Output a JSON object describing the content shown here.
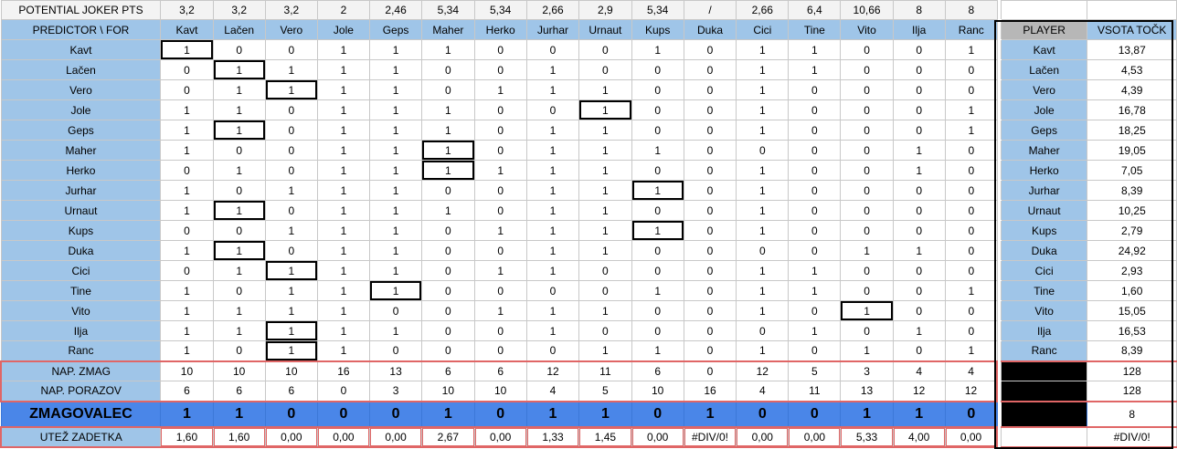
{
  "joker_label": "POTENTIAL JOKER PTS",
  "joker_values": [
    "3,2",
    "3,2",
    "3,2",
    "2",
    "2,46",
    "5,34",
    "5,34",
    "2,66",
    "2,9",
    "5,34",
    "/",
    "2,66",
    "6,4",
    "10,66",
    "8",
    "8"
  ],
  "corner_label": "PREDICTOR \\ FOR",
  "columns": [
    "Kavt",
    "Lačen",
    "Vero",
    "Jole",
    "Geps",
    "Maher",
    "Herko",
    "Jurhar",
    "Urnaut",
    "Kups",
    "Duka",
    "Cici",
    "Tine",
    "Vito",
    "Ilja",
    "Ranc"
  ],
  "rows": [
    {
      "name": "Kavt",
      "values": [
        "1",
        "0",
        "0",
        "1",
        "1",
        "1",
        "0",
        "0",
        "0",
        "1",
        "0",
        "1",
        "1",
        "0",
        "0",
        "1"
      ],
      "self": 0
    },
    {
      "name": "Lačen",
      "values": [
        "0",
        "1",
        "1",
        "1",
        "1",
        "0",
        "0",
        "1",
        "0",
        "0",
        "0",
        "1",
        "1",
        "0",
        "0",
        "0"
      ],
      "self": 1
    },
    {
      "name": "Vero",
      "values": [
        "0",
        "1",
        "1",
        "1",
        "1",
        "0",
        "1",
        "1",
        "1",
        "0",
        "0",
        "1",
        "0",
        "0",
        "0",
        "0"
      ],
      "self": 2
    },
    {
      "name": "Jole",
      "values": [
        "1",
        "1",
        "0",
        "1",
        "1",
        "1",
        "0",
        "0",
        "1",
        "0",
        "0",
        "1",
        "0",
        "0",
        "0",
        "1"
      ],
      "self": 8
    },
    {
      "name": "Geps",
      "values": [
        "1",
        "1",
        "0",
        "1",
        "1",
        "1",
        "0",
        "1",
        "1",
        "0",
        "0",
        "1",
        "0",
        "0",
        "0",
        "1"
      ],
      "self": 1
    },
    {
      "name": "Maher",
      "values": [
        "1",
        "0",
        "0",
        "1",
        "1",
        "1",
        "0",
        "1",
        "1",
        "1",
        "0",
        "0",
        "0",
        "0",
        "1",
        "0"
      ],
      "self": 5
    },
    {
      "name": "Herko",
      "values": [
        "0",
        "1",
        "0",
        "1",
        "1",
        "1",
        "1",
        "1",
        "1",
        "0",
        "0",
        "1",
        "0",
        "0",
        "1",
        "0"
      ],
      "self": 5
    },
    {
      "name": "Jurhar",
      "values": [
        "1",
        "0",
        "1",
        "1",
        "1",
        "0",
        "0",
        "1",
        "1",
        "1",
        "0",
        "1",
        "0",
        "0",
        "0",
        "0"
      ],
      "self": 9
    },
    {
      "name": "Urnaut",
      "values": [
        "1",
        "1",
        "0",
        "1",
        "1",
        "1",
        "0",
        "1",
        "1",
        "0",
        "0",
        "1",
        "0",
        "0",
        "0",
        "0"
      ],
      "self": 1
    },
    {
      "name": "Kups",
      "values": [
        "0",
        "0",
        "1",
        "1",
        "1",
        "0",
        "1",
        "1",
        "1",
        "1",
        "0",
        "1",
        "0",
        "0",
        "0",
        "0"
      ],
      "self": 9
    },
    {
      "name": "Duka",
      "values": [
        "1",
        "1",
        "0",
        "1",
        "1",
        "0",
        "0",
        "1",
        "1",
        "0",
        "0",
        "0",
        "0",
        "1",
        "1",
        "0"
      ],
      "self": 1
    },
    {
      "name": "Cici",
      "values": [
        "0",
        "1",
        "1",
        "1",
        "1",
        "0",
        "1",
        "1",
        "0",
        "0",
        "0",
        "1",
        "1",
        "0",
        "0",
        "0"
      ],
      "self": 2
    },
    {
      "name": "Tine",
      "values": [
        "1",
        "0",
        "1",
        "1",
        "1",
        "0",
        "0",
        "0",
        "0",
        "1",
        "0",
        "1",
        "1",
        "0",
        "0",
        "1"
      ],
      "self": 4
    },
    {
      "name": "Vito",
      "values": [
        "1",
        "1",
        "1",
        "1",
        "0",
        "0",
        "1",
        "1",
        "1",
        "0",
        "0",
        "1",
        "0",
        "1",
        "0",
        "0"
      ],
      "self": 13
    },
    {
      "name": "Ilja",
      "values": [
        "1",
        "1",
        "1",
        "1",
        "1",
        "0",
        "0",
        "1",
        "0",
        "0",
        "0",
        "0",
        "1",
        "0",
        "1",
        "0"
      ],
      "self": 2
    },
    {
      "name": "Ranc",
      "values": [
        "1",
        "0",
        "1",
        "1",
        "0",
        "0",
        "0",
        "0",
        "1",
        "1",
        "0",
        "1",
        "0",
        "1",
        "0",
        "1"
      ],
      "self": 2
    }
  ],
  "nap_zmag": {
    "label": "NAP. ZMAG",
    "values": [
      "10",
      "10",
      "10",
      "16",
      "13",
      "6",
      "6",
      "12",
      "11",
      "6",
      "0",
      "12",
      "5",
      "3",
      "4",
      "4"
    ]
  },
  "nap_porazov": {
    "label": "NAP. PORAZOV",
    "values": [
      "6",
      "6",
      "6",
      "0",
      "3",
      "10",
      "10",
      "4",
      "5",
      "10",
      "16",
      "4",
      "11",
      "13",
      "12",
      "12"
    ]
  },
  "zmagovalec": {
    "label": "ZMAGOVALEC",
    "values": [
      "1",
      "1",
      "0",
      "0",
      "0",
      "1",
      "0",
      "1",
      "1",
      "0",
      "1",
      "0",
      "0",
      "1",
      "1",
      "0"
    ]
  },
  "utez": {
    "label": "UTEŽ ZADETKA",
    "values": [
      "1,60",
      "1,60",
      "0,00",
      "0,00",
      "0,00",
      "2,67",
      "0,00",
      "1,33",
      "1,45",
      "0,00",
      "#DIV/0!",
      "0,00",
      "0,00",
      "5,33",
      "4,00",
      "0,00"
    ]
  },
  "player_header": "PLAYER",
  "points_header": "VSOTA TOČK",
  "points": [
    "13,87",
    "4,53",
    "4,39",
    "16,78",
    "18,25",
    "19,05",
    "7,05",
    "8,39",
    "10,25",
    "2,79",
    "24,92",
    "2,93",
    "1,60",
    "15,05",
    "16,53",
    "8,39"
  ],
  "summary_values": [
    "128",
    "128",
    "8",
    "#DIV/0!"
  ],
  "colors": {
    "blue_header": "#9fc5e8",
    "winner_row": "#4a86e8",
    "red_border": "#e06666",
    "gray_header": "#b7b7b7"
  }
}
